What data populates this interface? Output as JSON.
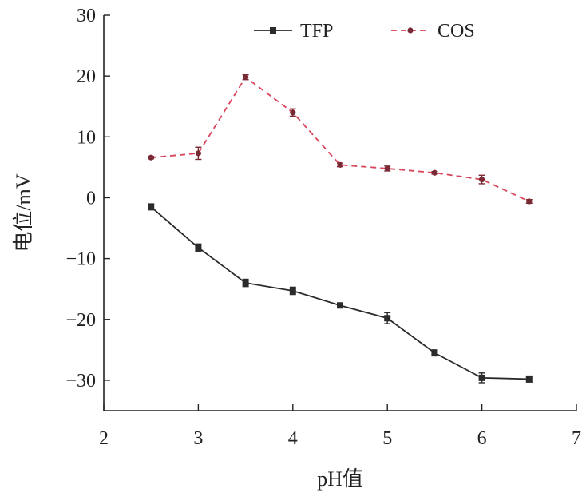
{
  "chart_data": {
    "type": "line",
    "xlabel": "pH值",
    "ylabel": "电位/mV",
    "xlim": [
      2,
      7
    ],
    "ylim": [
      -35,
      30
    ],
    "xticks": [
      2,
      3,
      4,
      5,
      6,
      7
    ],
    "yticks": [
      30,
      20,
      10,
      0,
      -10,
      -20,
      -30
    ],
    "ytick_labels": [
      "30",
      "20",
      "10",
      "0",
      "−10",
      "−20",
      "−30"
    ],
    "legend_position": "top",
    "grid": false,
    "x": [
      2.5,
      3,
      3.5,
      4,
      4.5,
      5,
      5.5,
      6,
      6.5
    ],
    "series": [
      {
        "name": "TFP",
        "color": "#2b2b2b",
        "line_style": "solid",
        "marker": "square",
        "values": [
          -1.5,
          -8.2,
          -14.0,
          -15.3,
          -17.7,
          -19.8,
          -25.5,
          -29.6,
          -29.8
        ],
        "errors": [
          0.5,
          0.6,
          0.6,
          0.6,
          0.3,
          0.9,
          0.5,
          0.8,
          0.5
        ]
      },
      {
        "name": "COS",
        "color": "#d9445a",
        "marker_color": "#7a2a35",
        "line_style": "dashed",
        "marker": "circle",
        "values": [
          6.6,
          7.3,
          19.8,
          14.0,
          5.4,
          4.8,
          4.1,
          3.0,
          -0.6
        ],
        "errors": [
          0.2,
          1.0,
          0.4,
          0.6,
          0.3,
          0.4,
          0.2,
          0.7,
          0.3
        ]
      }
    ]
  }
}
